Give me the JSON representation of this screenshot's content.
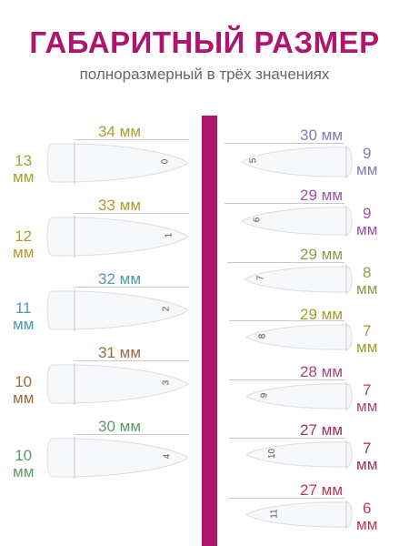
{
  "title": "ГАБАРИТНЫЙ РАЗМЕР",
  "subtitle": "полноразмерный в трёх значениях",
  "colors": {
    "title": "#b0156e",
    "divider": "#b0156e",
    "tip_fill": "#f7f8fa",
    "tip_stroke": "#d9dde3",
    "guide": "#c9c9c9"
  },
  "left_tips": [
    {
      "number": "0",
      "length_value": "34",
      "length_unit": "мм",
      "width_value": "13",
      "width_unit": "мм",
      "color": "#a8a034"
    },
    {
      "number": "1",
      "length_value": "33",
      "length_unit": "мм",
      "width_value": "12",
      "width_unit": "мм",
      "color": "#b89a2c"
    },
    {
      "number": "2",
      "length_value": "32",
      "length_unit": "мм",
      "width_value": "11",
      "width_unit": "мм",
      "color": "#4a9bb0"
    },
    {
      "number": "3",
      "length_value": "31",
      "length_unit": "мм",
      "width_value": "10",
      "width_unit": "мм",
      "color": "#9c6a3e"
    },
    {
      "number": "4",
      "length_value": "30",
      "length_unit": "мм",
      "width_value": "10",
      "width_unit": "мм",
      "color": "#5e9a6e"
    }
  ],
  "right_tips": [
    {
      "number": "5",
      "length_value": "30",
      "length_unit": "мм",
      "width_value": "9",
      "width_unit": "мм",
      "color": "#8a76b8"
    },
    {
      "number": "6",
      "length_value": "29",
      "length_unit": "мм",
      "width_value": "9",
      "width_unit": "мм",
      "color": "#a052a6"
    },
    {
      "number": "7",
      "length_value": "29",
      "length_unit": "мм",
      "width_value": "8",
      "width_unit": "мм",
      "color": "#8e9a4c"
    },
    {
      "number": "8",
      "length_value": "29",
      "length_unit": "мм",
      "width_value": "7",
      "width_unit": "мм",
      "color": "#a89a2c"
    },
    {
      "number": "9",
      "length_value": "28",
      "length_unit": "мм",
      "width_value": "7",
      "width_unit": "мм",
      "color": "#a5487c"
    },
    {
      "number": "10",
      "length_value": "27",
      "length_unit": "мм",
      "width_value": "7",
      "width_unit": "мм",
      "color": "#9e2f5c"
    },
    {
      "number": "11",
      "length_value": "27",
      "length_unit": "мм",
      "width_value": "6",
      "width_unit": "мм",
      "color": "#bb3a56"
    }
  ]
}
